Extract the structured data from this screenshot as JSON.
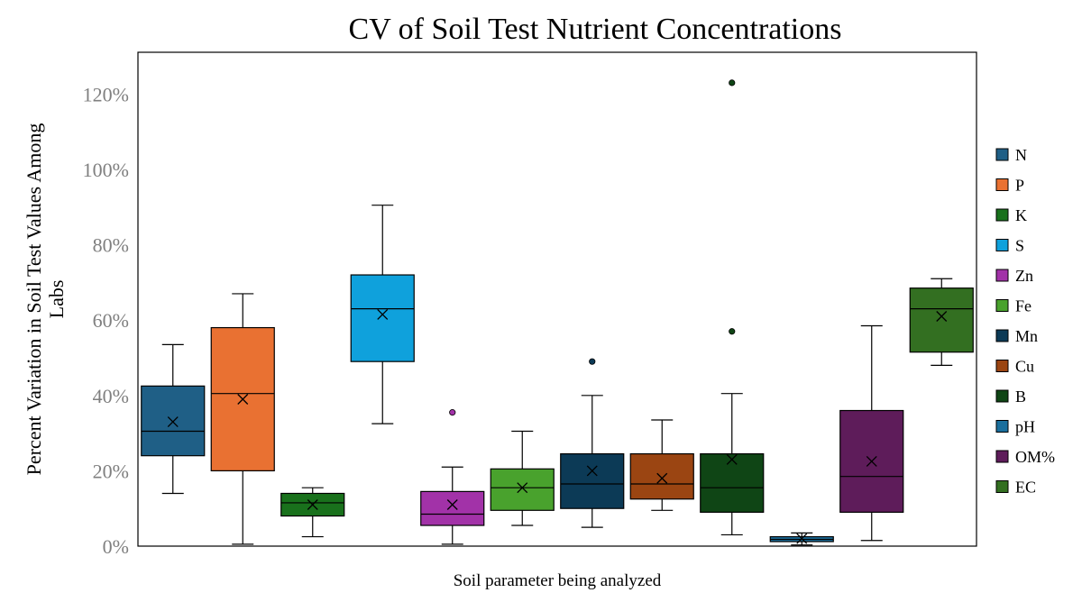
{
  "chart_data": {
    "type": "box",
    "title": "CV of Soil Test Nutrient Concentrations",
    "xlabel": "Soil parameter being analyzed",
    "ylabel_lines": [
      "Percent Variation in Soil Test Values Among",
      "Labs"
    ],
    "ylim": [
      0,
      130
    ],
    "yticks": [
      0,
      20,
      40,
      60,
      80,
      100,
      120
    ],
    "ytick_labels": [
      "0%",
      "20%",
      "40%",
      "60%",
      "80%",
      "100%",
      "120%"
    ],
    "legend_position": "right",
    "series": [
      {
        "name": "N",
        "color": "#1f5f86",
        "min": 14,
        "q1": 24,
        "median": 30.5,
        "q3": 42.5,
        "max": 53.5,
        "mean": 33,
        "outliers": []
      },
      {
        "name": "P",
        "color": "#e97132",
        "min": 0.5,
        "q1": 20,
        "median": 40.5,
        "q3": 58,
        "max": 67,
        "mean": 39,
        "outliers": []
      },
      {
        "name": "K",
        "color": "#19711c",
        "min": 2.5,
        "q1": 8,
        "median": 11.5,
        "q3": 14,
        "max": 15.5,
        "mean": 11,
        "outliers": []
      },
      {
        "name": "S",
        "color": "#0fa1dc",
        "min": 32.5,
        "q1": 49,
        "median": 63,
        "q3": 72,
        "max": 90.5,
        "mean": 61.5,
        "outliers": []
      },
      {
        "name": "Zn",
        "color": "#a232a8",
        "min": 0.5,
        "q1": 5.5,
        "median": 8.5,
        "q3": 14.5,
        "max": 21,
        "mean": 11,
        "outliers": [
          35.5
        ]
      },
      {
        "name": "Fe",
        "color": "#49a22d",
        "min": 5.5,
        "q1": 9.5,
        "median": 15.5,
        "q3": 20.5,
        "max": 30.5,
        "mean": 15.5,
        "outliers": []
      },
      {
        "name": "Mn",
        "color": "#0c3a56",
        "min": 5,
        "q1": 10,
        "median": 16.5,
        "q3": 24.5,
        "max": 40,
        "mean": 20,
        "outliers": [
          49
        ]
      },
      {
        "name": "Cu",
        "color": "#9b4512",
        "min": 9.5,
        "q1": 12.5,
        "median": 16.5,
        "q3": 24.5,
        "max": 33.5,
        "mean": 18,
        "outliers": []
      },
      {
        "name": "B",
        "color": "#0f4515",
        "min": 3,
        "q1": 9,
        "median": 15.5,
        "q3": 24.5,
        "max": 40.5,
        "mean": 23,
        "outliers": [
          57,
          123
        ]
      },
      {
        "name": "pH",
        "color": "#1b6f9d",
        "min": 0.3,
        "q1": 1.2,
        "median": 1.8,
        "q3": 2.5,
        "max": 3.5,
        "mean": 2,
        "outliers": []
      },
      {
        "name": "OM%",
        "color": "#5e1c5a",
        "min": 1.5,
        "q1": 9,
        "median": 18.5,
        "q3": 36,
        "max": 58.5,
        "mean": 22.5,
        "outliers": []
      },
      {
        "name": "EC",
        "color": "#336f21",
        "min": 48,
        "q1": 51.5,
        "median": 63,
        "q3": 68.5,
        "max": 71,
        "mean": 61,
        "outliers": []
      }
    ]
  }
}
